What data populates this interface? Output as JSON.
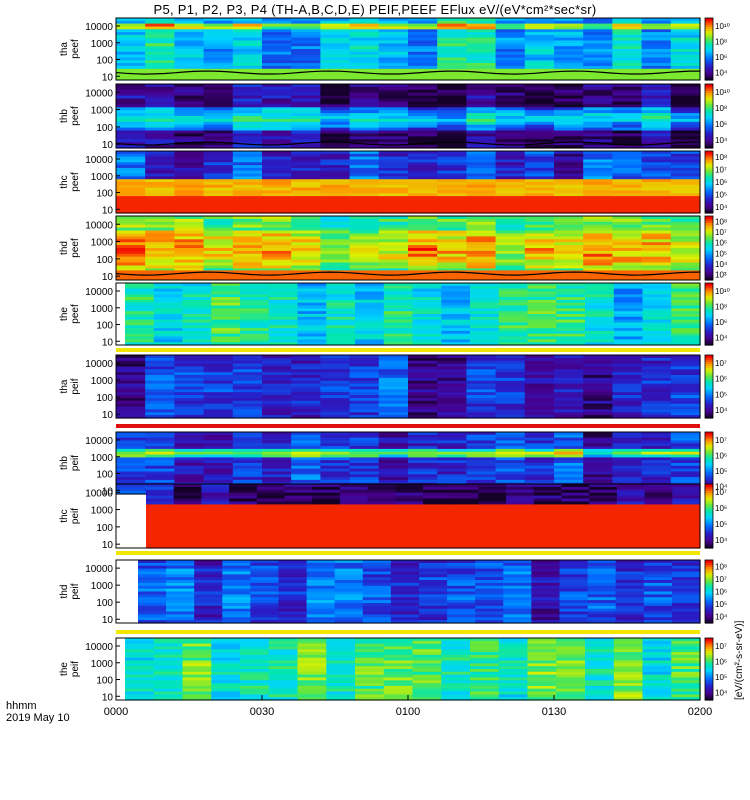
{
  "title": "P5, P1, P2, P3, P4 (TH-A,B,C,D,E) PEIF,PEEF EFlux eV/(eV*cm²*sec*sr)",
  "time_axis": {
    "label_line1": "hhmm",
    "label_line2": "2019 May 10",
    "ticks": [
      "0000",
      "0030",
      "0100",
      "0130",
      "0200"
    ]
  },
  "colorbar_label": "[eV/(cm²-s-sr-eV)]",
  "chart_data": [
    {
      "type": "heatmap",
      "panel": "tha peef",
      "probe": "tha",
      "species": "peef",
      "y_log": true,
      "y_ticks": [
        "10",
        "100",
        "1000",
        "10000"
      ],
      "cbar_ticks": [
        "10⁴",
        "10⁶",
        "10⁸",
        "10¹⁰"
      ],
      "dominant_band": "green ~10-30 eV",
      "overlay_line": "spacecraft potential ~20 eV"
    },
    {
      "type": "heatmap",
      "panel": "thb peef",
      "probe": "thb",
      "species": "peef",
      "y_log": true,
      "y_ticks": [
        "10",
        "100",
        "1000",
        "10000"
      ],
      "cbar_ticks": [
        "10⁴",
        "10⁶",
        "10⁸",
        "10¹⁰"
      ],
      "dominant_band": "green/yellow ~50-300 eV",
      "overlay_line": "spacecraft potential ~10 eV"
    },
    {
      "type": "heatmap",
      "panel": "thc peef",
      "probe": "thc",
      "species": "peef",
      "y_log": true,
      "y_ticks": [
        "10",
        "100",
        "1000",
        "10000"
      ],
      "cbar_ticks": [
        "10⁴",
        "10⁵",
        "10⁶",
        "10⁷",
        "10⁸"
      ],
      "dominant_band": "red ~10-40 eV, orange ~100-300 eV"
    },
    {
      "type": "heatmap",
      "panel": "thd peef",
      "probe": "thd",
      "species": "peef",
      "y_log": true,
      "y_ticks": [
        "10",
        "100",
        "1000",
        "10000"
      ],
      "cbar_ticks": [
        "10³",
        "10⁴",
        "10⁵",
        "10⁶",
        "10⁷",
        "10⁸"
      ],
      "dominant_band": "orange/yellow ~100-3000 eV",
      "overlay_line": "spacecraft potential ~20 eV"
    },
    {
      "type": "heatmap",
      "panel": "the peef",
      "probe": "the",
      "species": "peef",
      "y_log": true,
      "y_ticks": [
        "10",
        "100",
        "1000",
        "10000"
      ],
      "cbar_ticks": [
        "10⁴",
        "10⁶",
        "10⁸",
        "10¹⁰"
      ],
      "dominant_band": "cyan/green across energies"
    },
    {
      "type": "heatmap",
      "panel": "tha peif",
      "probe": "tha",
      "species": "peif",
      "y_log": true,
      "y_ticks": [
        "10",
        "100",
        "1000",
        "10000"
      ],
      "cbar_ticks": [
        "10⁴",
        "10⁵",
        "10⁶",
        "10⁷"
      ],
      "dominant_band": "blue/purple"
    },
    {
      "type": "heatmap",
      "panel": "thb peif",
      "probe": "thb",
      "species": "peif",
      "y_log": true,
      "y_ticks": [
        "10",
        "100",
        "1000",
        "10000"
      ],
      "cbar_ticks": [
        "10⁴",
        "10⁵",
        "10⁶",
        "10⁷"
      ],
      "dominant_band": "yellow/orange ~800-1500 eV"
    },
    {
      "type": "heatmap",
      "panel": "thc peif",
      "probe": "thc",
      "species": "peif",
      "y_log": true,
      "y_ticks": [
        "10",
        "100",
        "1000",
        "10000"
      ],
      "cbar_ticks": [
        "10⁴",
        "10⁵",
        "10⁶",
        "10⁷"
      ],
      "dominant_band": "red ~800-1500 eV"
    },
    {
      "type": "heatmap",
      "panel": "thd peif",
      "probe": "thd",
      "species": "peif",
      "y_log": true,
      "y_ticks": [
        "10",
        "100",
        "1000",
        "10000"
      ],
      "cbar_ticks": [
        "10⁴",
        "10⁵",
        "10⁶",
        "10⁷",
        "10⁸"
      ],
      "dominant_band": "blue/cyan"
    },
    {
      "type": "heatmap",
      "panel": "the peif",
      "probe": "the",
      "species": "peif",
      "y_log": true,
      "y_ticks": [
        "10",
        "100",
        "1000",
        "10000"
      ],
      "cbar_ticks": [
        "10⁴",
        "10⁵",
        "10⁶",
        "10⁷"
      ],
      "dominant_band": "cyan/green/yellow"
    }
  ]
}
